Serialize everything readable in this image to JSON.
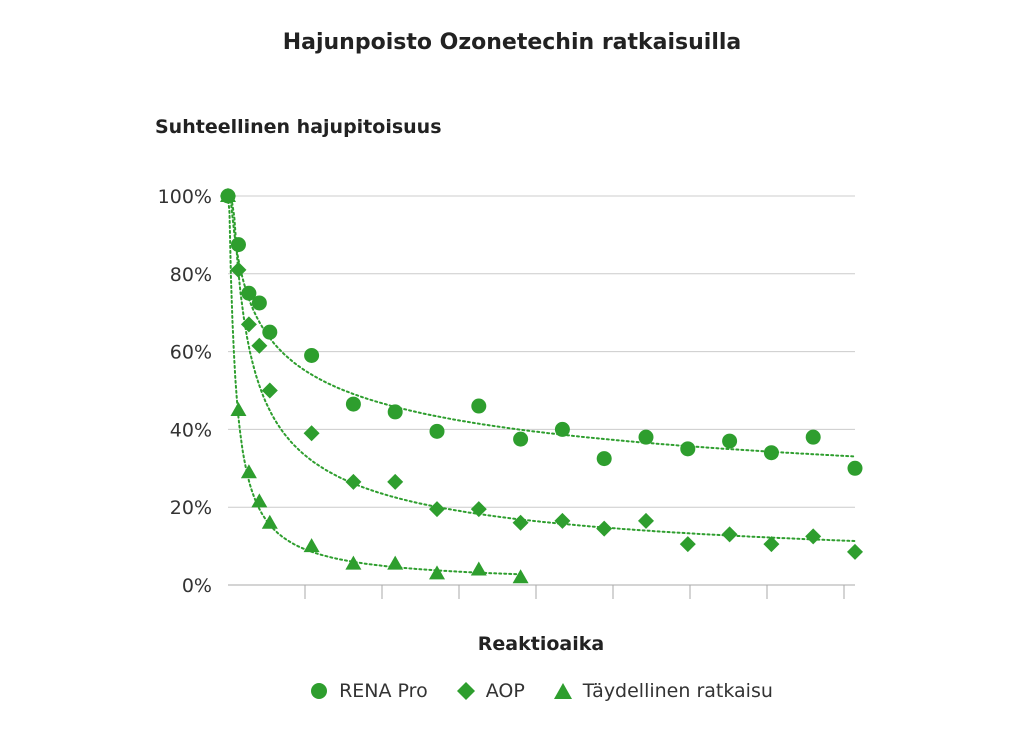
{
  "chart_data": {
    "type": "scatter",
    "title": "Hajunpoisto Ozonetechin ratkaisuilla",
    "ylabel": "Suhteellinen hajupitoisuus",
    "xlabel": "Reaktioaika",
    "y_ticks": [
      "100%",
      "80%",
      "60%",
      "40%",
      "20%",
      "0%"
    ],
    "ylim": [
      0,
      100
    ],
    "xlim": [
      0,
      30
    ],
    "x_tick_count": 8,
    "grid": true,
    "legend_position": "bottom",
    "trendlines": "dotted",
    "series": [
      {
        "name": "RENA Pro",
        "marker": "circle",
        "color": "#2e9e2e",
        "x": [
          0,
          0.5,
          1,
          1.5,
          2,
          4,
          6,
          8,
          10,
          12,
          14,
          16,
          18,
          20,
          22,
          24,
          26,
          28,
          30
        ],
        "y": [
          100,
          87.5,
          75,
          72.5,
          65,
          59,
          46.5,
          44.5,
          39.5,
          46,
          37.5,
          40,
          32.5,
          38,
          35,
          37,
          34,
          38,
          30
        ]
      },
      {
        "name": "AOP",
        "marker": "diamond",
        "color": "#2e9e2e",
        "x": [
          0,
          0.5,
          1,
          1.5,
          2,
          4,
          6,
          8,
          10,
          12,
          14,
          16,
          18,
          20,
          22,
          24,
          26,
          28,
          30
        ],
        "y": [
          100,
          81,
          67,
          61.5,
          50,
          39,
          26.5,
          26.5,
          19.5,
          19.5,
          16,
          16.5,
          14.5,
          16.5,
          10.5,
          13,
          10.5,
          12.5,
          8.5
        ]
      },
      {
        "name": "Täydellinen ratkaisu",
        "marker": "triangle",
        "color": "#2e9e2e",
        "x": [
          0,
          0.5,
          1,
          1.5,
          2,
          4,
          6,
          8,
          10,
          12,
          14
        ],
        "y": [
          100,
          45,
          29,
          21.5,
          16,
          10,
          5.5,
          5.5,
          3,
          4,
          2
        ]
      }
    ]
  }
}
